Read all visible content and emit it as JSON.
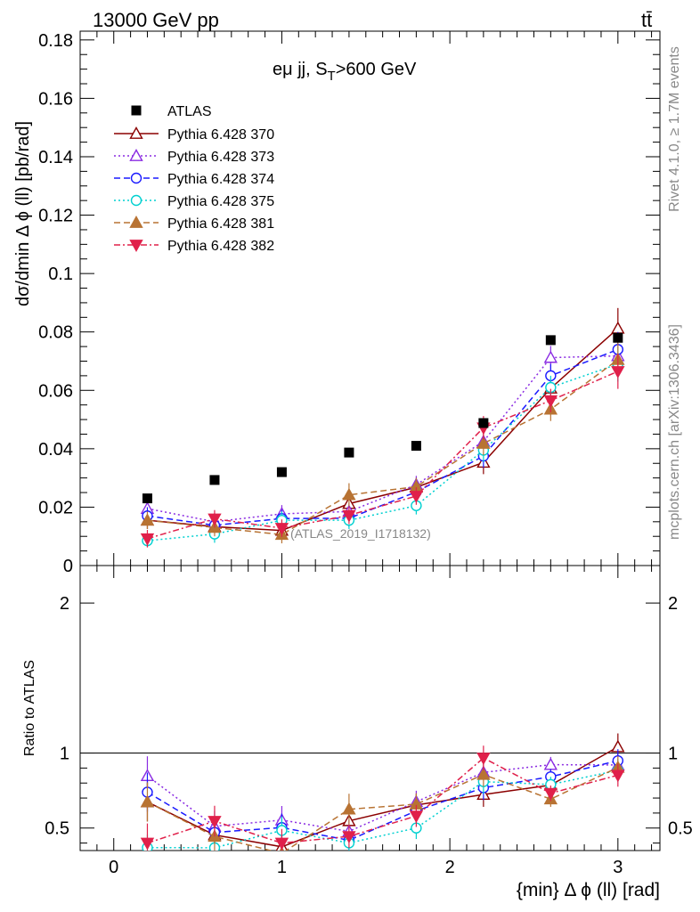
{
  "header": {
    "energy_label": "13000 GeV pp",
    "process_label": "tt̄"
  },
  "side_labels": {
    "rivet": "Rivet 4.1.0, ≥ 1.7M events",
    "mcplots": "mcplots.cern.ch [arXiv:1306.3436]"
  },
  "chart_data": {
    "type": "scatter",
    "title_main": "eμ jj, S",
    "title_sub": "T",
    "title_tail": ">600 GeV",
    "analysis_label": "(ATLAS_2019_I1718132)",
    "xlabel": "{min} Δ ϕ (ll) [rad]",
    "ylabel": "dσ/dmin Δ ϕ (ll) [pb/rad]",
    "ratio_ylabel": "Ratio to ATLAS",
    "xlim": [
      -0.2,
      3.25
    ],
    "ylim": [
      0,
      0.183
    ],
    "ratio_ylim": [
      0.35,
      2.25
    ],
    "x_ticks": [
      "0",
      "1",
      "2",
      "3"
    ],
    "y_ticks": [
      "0",
      "0.02",
      "0.04",
      "0.06",
      "0.08",
      "0.1",
      "0.12",
      "0.14",
      "0.16",
      "0.18"
    ],
    "ratio_ticks": [
      "0.5",
      "1",
      "2"
    ],
    "x": [
      0.2,
      0.6,
      1.0,
      1.4,
      1.8,
      2.2,
      2.6,
      3.0
    ],
    "data": {
      "name": "ATLAS",
      "color": "#000000",
      "values": [
        0.023,
        0.0293,
        0.032,
        0.0387,
        0.041,
        0.0488,
        0.0772,
        0.078
      ]
    },
    "series": [
      {
        "name": "Pythia 6.428 370",
        "color": "#8b0000",
        "marker": "triangle-open",
        "dash": "solid",
        "values": [
          0.0155,
          0.0133,
          0.012,
          0.0212,
          0.0268,
          0.0353,
          0.0607,
          0.0812
        ],
        "errors": [
          0.003,
          0.003,
          0.003,
          0.003,
          0.003,
          0.004,
          0.004,
          0.007
        ]
      },
      {
        "name": "Pythia 6.428 373",
        "color": "#8a2be2",
        "marker": "triangle-open",
        "dash": "dotted",
        "values": [
          0.0195,
          0.015,
          0.0177,
          0.0185,
          0.0277,
          0.0425,
          0.0712,
          0.0718
        ],
        "errors": [
          0.003,
          0.003,
          0.003,
          0.003,
          0.003,
          0.004,
          0.004,
          0.006
        ]
      },
      {
        "name": "Pythia 6.428 374",
        "color": "#1a1aff",
        "marker": "circle-open",
        "dash": "dashed",
        "values": [
          0.017,
          0.0138,
          0.0161,
          0.0162,
          0.0252,
          0.0375,
          0.065,
          0.074
        ],
        "errors": [
          0.003,
          0.003,
          0.003,
          0.003,
          0.003,
          0.004,
          0.004,
          0.006
        ]
      },
      {
        "name": "Pythia 6.428 375",
        "color": "#00d0d0",
        "marker": "circle-open",
        "dash": "dotted",
        "values": [
          0.0085,
          0.0108,
          0.0155,
          0.0155,
          0.0205,
          0.0395,
          0.061,
          0.069
        ],
        "errors": [
          0.002,
          0.003,
          0.003,
          0.003,
          0.003,
          0.004,
          0.004,
          0.006
        ]
      },
      {
        "name": "Pythia 6.428 381",
        "color": "#b87333",
        "marker": "triangle-filled",
        "dash": "dashed",
        "values": [
          0.0155,
          0.013,
          0.0106,
          0.0242,
          0.027,
          0.0418,
          0.0535,
          0.0705
        ],
        "errors": [
          0.003,
          0.003,
          0.003,
          0.004,
          0.003,
          0.004,
          0.004,
          0.006
        ]
      },
      {
        "name": "Pythia 6.428 382",
        "color": "#e0204a",
        "marker": "triangle-down-filled",
        "dash": "dashdot",
        "values": [
          0.0092,
          0.016,
          0.0128,
          0.0172,
          0.0238,
          0.0472,
          0.0565,
          0.0665
        ],
        "errors": [
          0.003,
          0.003,
          0.003,
          0.003,
          0.003,
          0.004,
          0.004,
          0.006
        ]
      }
    ]
  }
}
